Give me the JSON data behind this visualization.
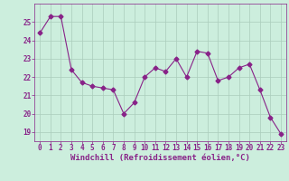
{
  "x": [
    0,
    1,
    2,
    3,
    4,
    5,
    6,
    7,
    8,
    9,
    10,
    11,
    12,
    13,
    14,
    15,
    16,
    17,
    18,
    19,
    20,
    21,
    22,
    23
  ],
  "y": [
    24.4,
    25.3,
    25.3,
    22.4,
    21.7,
    21.5,
    21.4,
    21.3,
    20.0,
    20.6,
    22.0,
    22.5,
    22.3,
    23.0,
    22.0,
    23.4,
    23.3,
    21.8,
    22.0,
    22.5,
    22.7,
    21.3,
    19.8,
    18.9
  ],
  "line_color": "#882288",
  "marker": "D",
  "markersize": 2.5,
  "linewidth": 0.8,
  "xlabel": "Windchill (Refroidissement éolien,°C)",
  "xlim": [
    -0.5,
    23.5
  ],
  "ylim": [
    18.5,
    26.0
  ],
  "yticks": [
    19,
    20,
    21,
    22,
    23,
    24,
    25
  ],
  "xticks": [
    0,
    1,
    2,
    3,
    4,
    5,
    6,
    7,
    8,
    9,
    10,
    11,
    12,
    13,
    14,
    15,
    16,
    17,
    18,
    19,
    20,
    21,
    22,
    23
  ],
  "bg_color": "#cceedd",
  "grid_color": "#aaccbb",
  "label_color": "#882288",
  "font_size_tick": 5.5,
  "font_size_xlabel": 6.5
}
